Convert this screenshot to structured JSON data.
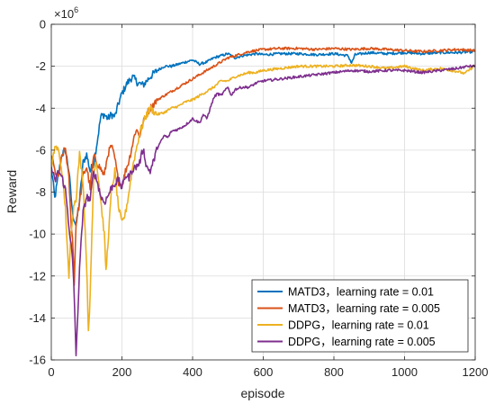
{
  "chart_data": {
    "type": "line",
    "xlabel": "episode",
    "ylabel": "Reward",
    "y_multiplier_label": "×10",
    "y_multiplier_exp": "6",
    "xlim": [
      0,
      1200
    ],
    "ylim": [
      -16,
      0
    ],
    "x_ticks": [
      "0",
      "200",
      "400",
      "600",
      "800",
      "1000",
      "1200"
    ],
    "y_ticks": [
      "0",
      "-2",
      "-4",
      "-6",
      "-8",
      "-10",
      "-12",
      "-14",
      "-16"
    ],
    "grid": true,
    "legend_position": "bottom-right",
    "series": [
      {
        "name": "MATD3，learning rate = 0.01",
        "color": "#0072BD",
        "points": [
          [
            0,
            -6.8
          ],
          [
            10,
            -8.3
          ],
          [
            20,
            -7.2
          ],
          [
            30,
            -6.2
          ],
          [
            40,
            -6.0
          ],
          [
            50,
            -7.0
          ],
          [
            60,
            -9.0
          ],
          [
            70,
            -9.6
          ],
          [
            80,
            -8.4
          ],
          [
            90,
            -6.6
          ],
          [
            100,
            -6.2
          ],
          [
            110,
            -7.0
          ],
          [
            120,
            -6.6
          ],
          [
            130,
            -5.6
          ],
          [
            140,
            -4.4
          ],
          [
            150,
            -4.3
          ],
          [
            160,
            -4.5
          ],
          [
            170,
            -4.3
          ],
          [
            180,
            -4.4
          ],
          [
            190,
            -3.8
          ],
          [
            200,
            -3.3
          ],
          [
            215,
            -2.8
          ],
          [
            230,
            -2.5
          ],
          [
            245,
            -2.8
          ],
          [
            260,
            -2.9
          ],
          [
            280,
            -2.5
          ],
          [
            300,
            -2.2
          ],
          [
            320,
            -2.0
          ],
          [
            340,
            -2.0
          ],
          [
            360,
            -1.9
          ],
          [
            380,
            -1.8
          ],
          [
            400,
            -1.7
          ],
          [
            420,
            -1.9
          ],
          [
            440,
            -1.8
          ],
          [
            460,
            -1.6
          ],
          [
            480,
            -1.5
          ],
          [
            500,
            -1.4
          ],
          [
            520,
            -1.6
          ],
          [
            540,
            -1.5
          ],
          [
            560,
            -1.45
          ],
          [
            580,
            -1.4
          ],
          [
            600,
            -1.45
          ],
          [
            650,
            -1.4
          ],
          [
            700,
            -1.4
          ],
          [
            750,
            -1.45
          ],
          [
            800,
            -1.4
          ],
          [
            840,
            -1.5
          ],
          [
            850,
            -1.85
          ],
          [
            860,
            -1.45
          ],
          [
            900,
            -1.35
          ],
          [
            950,
            -1.4
          ],
          [
            1000,
            -1.35
          ],
          [
            1050,
            -1.4
          ],
          [
            1100,
            -1.35
          ],
          [
            1150,
            -1.35
          ],
          [
            1200,
            -1.3
          ]
        ]
      },
      {
        "name": "MATD3，learning rate = 0.005",
        "color": "#D95319",
        "points": [
          [
            0,
            -6.2
          ],
          [
            10,
            -7.0
          ],
          [
            20,
            -7.3
          ],
          [
            30,
            -6.3
          ],
          [
            40,
            -5.9
          ],
          [
            50,
            -7.4
          ],
          [
            55,
            -9.2
          ],
          [
            60,
            -10.2
          ],
          [
            65,
            -12.3
          ],
          [
            70,
            -9.5
          ],
          [
            80,
            -8.5
          ],
          [
            90,
            -7.2
          ],
          [
            100,
            -6.8
          ],
          [
            110,
            -7.8
          ],
          [
            120,
            -6.3
          ],
          [
            130,
            -6.6
          ],
          [
            140,
            -6.9
          ],
          [
            150,
            -7.2
          ],
          [
            160,
            -6.2
          ],
          [
            170,
            -5.8
          ],
          [
            180,
            -6.4
          ],
          [
            190,
            -7.5
          ],
          [
            200,
            -7.7
          ],
          [
            210,
            -7.0
          ],
          [
            220,
            -6.5
          ],
          [
            230,
            -5.7
          ],
          [
            240,
            -5.0
          ],
          [
            250,
            -5.3
          ],
          [
            260,
            -4.7
          ],
          [
            270,
            -4.3
          ],
          [
            280,
            -4.0
          ],
          [
            300,
            -3.6
          ],
          [
            320,
            -3.4
          ],
          [
            340,
            -3.2
          ],
          [
            360,
            -3.0
          ],
          [
            380,
            -2.8
          ],
          [
            400,
            -2.6
          ],
          [
            420,
            -2.4
          ],
          [
            440,
            -2.2
          ],
          [
            460,
            -2.0
          ],
          [
            480,
            -1.8
          ],
          [
            500,
            -1.6
          ],
          [
            520,
            -1.5
          ],
          [
            540,
            -1.4
          ],
          [
            560,
            -1.3
          ],
          [
            580,
            -1.25
          ],
          [
            600,
            -1.2
          ],
          [
            650,
            -1.15
          ],
          [
            700,
            -1.15
          ],
          [
            750,
            -1.2
          ],
          [
            800,
            -1.15
          ],
          [
            850,
            -1.2
          ],
          [
            900,
            -1.15
          ],
          [
            950,
            -1.2
          ],
          [
            1000,
            -1.25
          ],
          [
            1050,
            -1.3
          ],
          [
            1100,
            -1.25
          ],
          [
            1150,
            -1.2
          ],
          [
            1200,
            -1.25
          ]
        ]
      },
      {
        "name": "DDPG，learning rate = 0.01",
        "color": "#EDB120",
        "points": [
          [
            0,
            -7.0
          ],
          [
            10,
            -5.8
          ],
          [
            20,
            -6.0
          ],
          [
            30,
            -7.0
          ],
          [
            40,
            -8.8
          ],
          [
            50,
            -12.2
          ],
          [
            55,
            -10.0
          ],
          [
            60,
            -9.2
          ],
          [
            65,
            -8.5
          ],
          [
            70,
            -8.3
          ],
          [
            80,
            -6.2
          ],
          [
            90,
            -7.5
          ],
          [
            100,
            -11.5
          ],
          [
            105,
            -14.6
          ],
          [
            110,
            -13.0
          ],
          [
            115,
            -10.0
          ],
          [
            120,
            -7.2
          ],
          [
            125,
            -6.5
          ],
          [
            130,
            -6.8
          ],
          [
            140,
            -8.4
          ],
          [
            150,
            -10.0
          ],
          [
            155,
            -11.8
          ],
          [
            160,
            -10.5
          ],
          [
            170,
            -8.0
          ],
          [
            180,
            -7.0
          ],
          [
            190,
            -8.7
          ],
          [
            200,
            -9.5
          ],
          [
            210,
            -9.0
          ],
          [
            220,
            -8.0
          ],
          [
            230,
            -6.8
          ],
          [
            240,
            -6.0
          ],
          [
            250,
            -5.2
          ],
          [
            260,
            -4.7
          ],
          [
            270,
            -4.3
          ],
          [
            280,
            -4.0
          ],
          [
            300,
            -4.3
          ],
          [
            320,
            -4.2
          ],
          [
            340,
            -4.0
          ],
          [
            360,
            -3.9
          ],
          [
            380,
            -3.7
          ],
          [
            400,
            -3.6
          ],
          [
            420,
            -3.4
          ],
          [
            440,
            -3.2
          ],
          [
            460,
            -3.0
          ],
          [
            480,
            -2.7
          ],
          [
            500,
            -2.7
          ],
          [
            520,
            -2.5
          ],
          [
            540,
            -2.4
          ],
          [
            560,
            -2.3
          ],
          [
            580,
            -2.3
          ],
          [
            600,
            -2.2
          ],
          [
            650,
            -2.1
          ],
          [
            700,
            -2.0
          ],
          [
            750,
            -2.0
          ],
          [
            800,
            -2.0
          ],
          [
            850,
            -1.95
          ],
          [
            900,
            -2.0
          ],
          [
            950,
            -2.1
          ],
          [
            1000,
            -2.0
          ],
          [
            1050,
            -2.2
          ],
          [
            1100,
            -2.1
          ],
          [
            1150,
            -2.25
          ],
          [
            1170,
            -2.35
          ],
          [
            1200,
            -1.95
          ]
        ]
      },
      {
        "name": "DDPG，learning rate = 0.005",
        "color": "#7E2F8E",
        "points": [
          [
            0,
            -6.8
          ],
          [
            10,
            -7.5
          ],
          [
            20,
            -7.0
          ],
          [
            30,
            -7.3
          ],
          [
            40,
            -7.9
          ],
          [
            50,
            -9.6
          ],
          [
            60,
            -11.2
          ],
          [
            65,
            -13.0
          ],
          [
            70,
            -15.7
          ],
          [
            75,
            -14.0
          ],
          [
            80,
            -11.5
          ],
          [
            90,
            -9.0
          ],
          [
            100,
            -8.2
          ],
          [
            110,
            -8.4
          ],
          [
            120,
            -7.0
          ],
          [
            130,
            -7.5
          ],
          [
            140,
            -8.2
          ],
          [
            150,
            -8.5
          ],
          [
            160,
            -8.2
          ],
          [
            170,
            -7.8
          ],
          [
            180,
            -7.6
          ],
          [
            190,
            -7.4
          ],
          [
            200,
            -7.8
          ],
          [
            210,
            -7.2
          ],
          [
            220,
            -7.3
          ],
          [
            230,
            -6.9
          ],
          [
            240,
            -6.8
          ],
          [
            250,
            -6.6
          ],
          [
            260,
            -5.9
          ],
          [
            270,
            -6.8
          ],
          [
            280,
            -7.0
          ],
          [
            290,
            -6.5
          ],
          [
            300,
            -5.9
          ],
          [
            310,
            -5.6
          ],
          [
            320,
            -5.3
          ],
          [
            330,
            -5.4
          ],
          [
            340,
            -5.1
          ],
          [
            360,
            -5.0
          ],
          [
            380,
            -4.8
          ],
          [
            400,
            -4.5
          ],
          [
            420,
            -4.7
          ],
          [
            430,
            -4.3
          ],
          [
            440,
            -4.5
          ],
          [
            450,
            -4.0
          ],
          [
            460,
            -3.5
          ],
          [
            470,
            -3.3
          ],
          [
            480,
            -3.4
          ],
          [
            490,
            -3.2
          ],
          [
            500,
            -3.0
          ],
          [
            510,
            -3.4
          ],
          [
            520,
            -3.1
          ],
          [
            540,
            -3.0
          ],
          [
            560,
            -3.0
          ],
          [
            580,
            -2.8
          ],
          [
            600,
            -2.7
          ],
          [
            650,
            -2.6
          ],
          [
            700,
            -2.5
          ],
          [
            750,
            -2.4
          ],
          [
            800,
            -2.3
          ],
          [
            850,
            -2.2
          ],
          [
            900,
            -2.25
          ],
          [
            950,
            -2.2
          ],
          [
            1000,
            -2.2
          ],
          [
            1050,
            -2.3
          ],
          [
            1100,
            -2.2
          ],
          [
            1150,
            -2.1
          ],
          [
            1180,
            -2.0
          ],
          [
            1200,
            -2.0
          ]
        ]
      }
    ]
  }
}
